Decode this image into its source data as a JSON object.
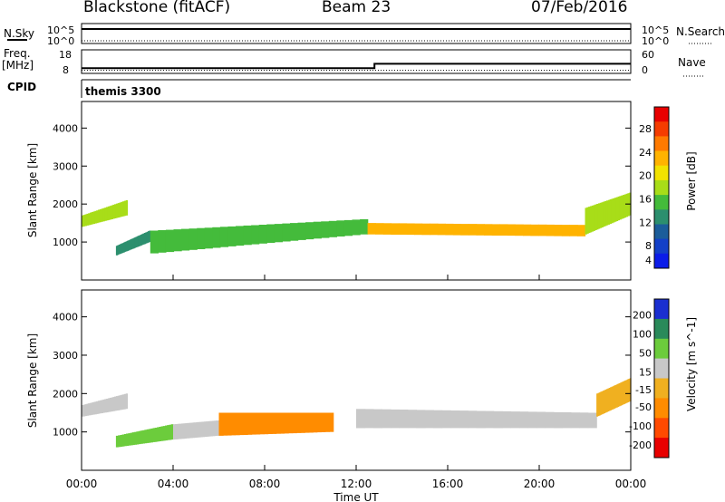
{
  "header": {
    "station": "Blackstone (fitACF)",
    "beam": "Beam 23",
    "date": "07/Feb/2016"
  },
  "top_panels": {
    "nsky_label": "N.Sky",
    "nsky_ticks": [
      "10^5",
      "10^0"
    ],
    "nsearch_label": "N.Search",
    "nsearch_ticks": [
      "10^5",
      "10^0"
    ],
    "freq_label": "Freq.",
    "freq_unit": "[MHz]",
    "freq_ticks": [
      "18",
      "8"
    ],
    "nave_label": "Nave",
    "nave_ticks": [
      "60",
      "0"
    ],
    "cpid_label": "CPID",
    "cpid_value": "themis 3300"
  },
  "x_axis": {
    "label": "Time UT",
    "ticks": [
      "00:00",
      "04:00",
      "08:00",
      "12:00",
      "16:00",
      "20:00",
      "00:00"
    ]
  },
  "power_colorbar": {
    "label": "Power [dB]",
    "ticks": [
      "28",
      "24",
      "20",
      "16",
      "12",
      "8",
      "4"
    ],
    "colors": [
      "#e80000",
      "#f53c00",
      "#ff7a00",
      "#ffb300",
      "#f2e200",
      "#a8dd18",
      "#44bb3b",
      "#2c8f6e",
      "#1b5d9a",
      "#1340c8",
      "#0b1ce8"
    ]
  },
  "velocity_colorbar": {
    "label": "Velocity [m s^-1]",
    "ticks": [
      "200",
      "100",
      "50",
      "15",
      "-15",
      "-50",
      "-100",
      "-200"
    ],
    "colors": [
      "#1a2fd0",
      "#2a8a5a",
      "#6ccc3c",
      "#c8c8c8",
      "#f0b020",
      "#ff8c00",
      "#ff4a00",
      "#e80000"
    ]
  },
  "chart_data": [
    {
      "type": "line",
      "title": "N.Sky / N.Search",
      "x": [
        0,
        2,
        4,
        6,
        8,
        10,
        12,
        14,
        16,
        18,
        20,
        22,
        24
      ],
      "series": [
        {
          "name": "N.Sky",
          "values": [
            5.0,
            5.0,
            5.0,
            5.0,
            5.0,
            5.0,
            5.0,
            5.0,
            5.0,
            5.0,
            5.0,
            5.0,
            5.0
          ]
        },
        {
          "name": "N.Search",
          "values": [
            0.0,
            0.0,
            0.0,
            0.0,
            0.0,
            0.0,
            0.0,
            0.0,
            0.0,
            0.0,
            0.0,
            0.0,
            0.0
          ]
        }
      ],
      "ylim": [
        0,
        5
      ]
    },
    {
      "type": "line",
      "title": "Freq. / Nave",
      "x": [
        0,
        12.8,
        12.8,
        24
      ],
      "series": [
        {
          "name": "Freq. [MHz]",
          "values": [
            10,
            10,
            12,
            12
          ]
        },
        {
          "name": "Nave",
          "values": [
            9,
            9,
            9,
            9
          ]
        }
      ],
      "ylim": [
        8,
        18
      ]
    },
    {
      "type": "heatmap",
      "title": "Power",
      "xlabel": "Time UT",
      "ylabel": "Slant Range [km]",
      "xlim": [
        0,
        24
      ],
      "ylim": [
        0,
        4700
      ],
      "yticks": [
        1000,
        2000,
        3000,
        4000
      ],
      "colorbar": "Power [dB]",
      "bands": [
        {
          "x": [
            0,
            2.0
          ],
          "y0": [
            1400,
            1700
          ],
          "y1": [
            1700,
            2100
          ],
          "level": 16
        },
        {
          "x": [
            1.5,
            3.0
          ],
          "y0": [
            650,
            1000
          ],
          "y1": [
            900,
            1300
          ],
          "level": 8
        },
        {
          "x": [
            3.0,
            12.5
          ],
          "y0": [
            700,
            1200
          ],
          "y1": [
            1300,
            1600
          ],
          "level": 12
        },
        {
          "x": [
            12.5,
            22.0
          ],
          "y0": [
            1200,
            1150
          ],
          "y1": [
            1500,
            1450
          ],
          "level": 20
        },
        {
          "x": [
            22.0,
            24.0
          ],
          "y0": [
            1200,
            1700
          ],
          "y1": [
            1900,
            2300
          ],
          "level": 16
        }
      ]
    },
    {
      "type": "heatmap",
      "title": "Velocity",
      "xlabel": "Time UT",
      "ylabel": "Slant Range [km]",
      "xlim": [
        0,
        24
      ],
      "ylim": [
        0,
        4700
      ],
      "yticks": [
        1000,
        2000,
        3000,
        4000
      ],
      "colorbar": "Velocity [m s^-1]",
      "bands": [
        {
          "x": [
            0,
            2.0
          ],
          "y0": [
            1400,
            1600
          ],
          "y1": [
            1700,
            2000
          ],
          "level": 0
        },
        {
          "x": [
            1.5,
            4.0
          ],
          "y0": [
            600,
            800
          ],
          "y1": [
            900,
            1200
          ],
          "level": 60
        },
        {
          "x": [
            4.0,
            6.0
          ],
          "y0": [
            800,
            900
          ],
          "y1": [
            1200,
            1300
          ],
          "level": 0
        },
        {
          "x": [
            6.0,
            11.0
          ],
          "y0": [
            900,
            1000
          ],
          "y1": [
            1500,
            1500
          ],
          "level": -40
        },
        {
          "x": [
            12.0,
            22.5
          ],
          "y0": [
            1100,
            1100
          ],
          "y1": [
            1600,
            1500
          ],
          "level": 0
        },
        {
          "x": [
            22.5,
            24.0
          ],
          "y0": [
            1400,
            1800
          ],
          "y1": [
            2000,
            2400
          ],
          "level": -20
        }
      ]
    }
  ]
}
